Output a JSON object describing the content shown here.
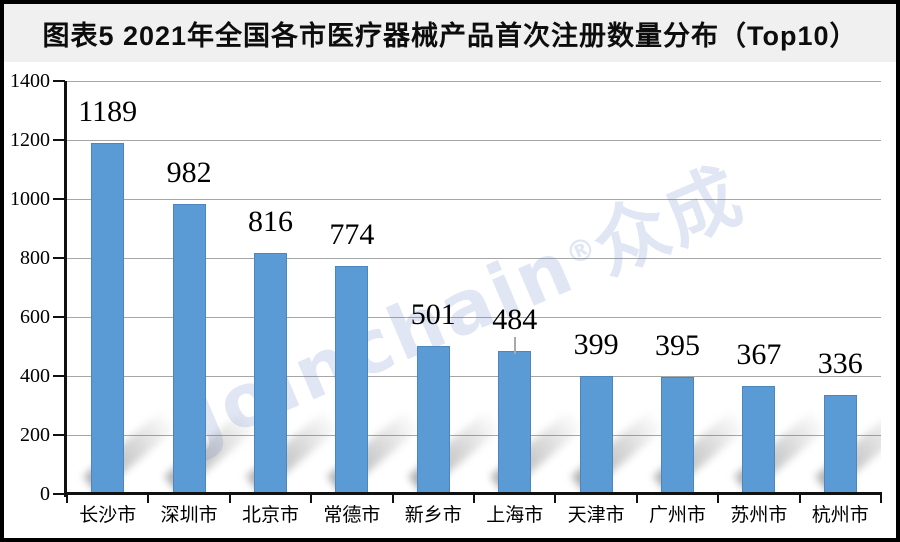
{
  "header": {
    "title": "图表5  2021年全国各市医疗器械产品首次注册数量分布（Top10）"
  },
  "watermark": {
    "pre": "Jo",
    "dotless_i": "ı",
    "post": "nchain",
    "reg": "®",
    "cjk": "众成"
  },
  "chart_data": {
    "type": "bar",
    "title": "图表5  2021年全国各市医疗器械产品首次注册数量分布（Top10）",
    "categories": [
      "长沙市",
      "深圳市",
      "北京市",
      "常德市",
      "新乡市",
      "上海市",
      "天津市",
      "广州市",
      "苏州市",
      "杭州市"
    ],
    "values": [
      1189,
      982,
      816,
      774,
      501,
      484,
      399,
      395,
      367,
      336
    ],
    "xlabel": "",
    "ylabel": "",
    "ylim": [
      0,
      1400
    ],
    "yticks": [
      0,
      200,
      400,
      600,
      800,
      1000,
      1200,
      1400
    ],
    "grid": true,
    "legend": false,
    "data_labels": true,
    "error_tick_index": 5,
    "bar_color": "#5B9BD5"
  },
  "colors": {
    "frame": "#000000",
    "title_band": "#f0f0f0",
    "grid": "#a6a6a6",
    "axis": "#111111",
    "bar": "#5B9BD5",
    "shadow": "#787878",
    "watermark": "rgba(100,130,200,0.20)",
    "watermark_dot": "rgba(205,80,70,0.38)",
    "text": "#000000"
  }
}
